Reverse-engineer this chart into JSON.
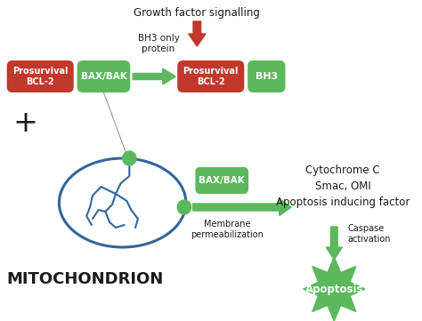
{
  "bg_color": "#ffffff",
  "green": "#5cb85c",
  "red": "#c0392b",
  "arrow_red": "#c0392b",
  "arrow_green": "#5cb85c",
  "text_dark": "#1a1a1a",
  "mito_color": "#336699",
  "figsize": [
    4.74,
    3.61
  ],
  "dpi": 100,
  "labels": {
    "growth_factor": "Growth factor signalling",
    "bh3_only": "BH3 only\nprotein",
    "prosurvival1": "Prosurvival\nBCL-2",
    "baxbak1": "BAX/BAK",
    "prosurvival2": "Prosurvival\nBCL-2",
    "bh3": "BH3",
    "plus": "+",
    "baxbak2": "BAX/BAK",
    "membrane": "Membrane\npermeabilization",
    "cytochrome": "Cytochrome C\nSmac, OMI\nApoptosis inducing factor",
    "caspase": "Caspase\nactivation",
    "apoptosis": "Apoptosis",
    "mitochondrion": "MITOCHONDRION"
  }
}
